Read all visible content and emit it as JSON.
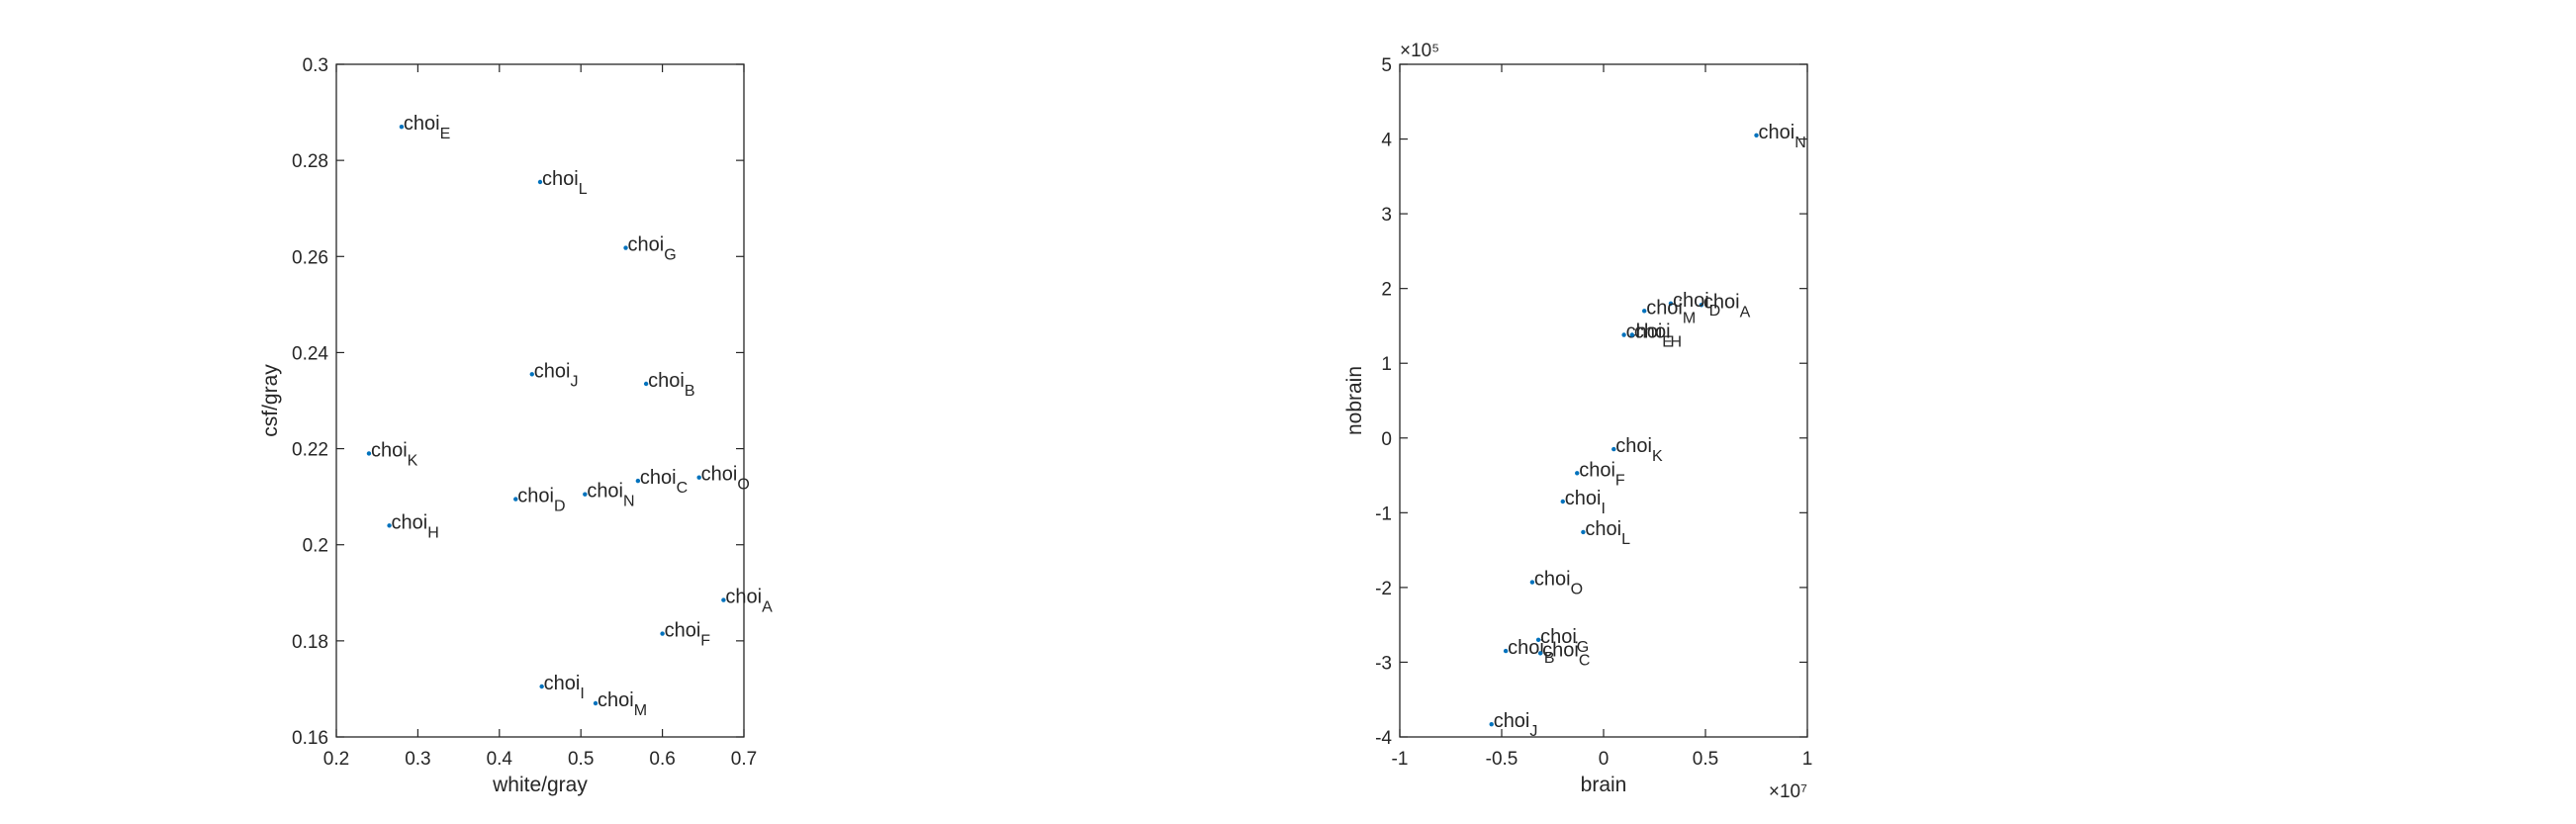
{
  "chart_data": [
    {
      "type": "scatter",
      "xlabel": "white/gray",
      "ylabel": "csf/gray",
      "xlim": [
        0.2,
        0.7
      ],
      "ylim": [
        0.16,
        0.3
      ],
      "xticks": [
        "0.2",
        "0.3",
        "0.4",
        "0.5",
        "0.6",
        "0.7"
      ],
      "yticks": [
        "0.16",
        "0.18",
        "0.2",
        "0.22",
        "0.24",
        "0.26",
        "0.28",
        "0.3"
      ],
      "exponent_x": "",
      "exponent_y": "",
      "grid": false,
      "marker_color": "#0072bd",
      "points": [
        {
          "label": "choi",
          "sub": "E",
          "x": 0.28,
          "y": 0.287
        },
        {
          "label": "choi",
          "sub": "L",
          "x": 0.45,
          "y": 0.2755
        },
        {
          "label": "choi",
          "sub": "G",
          "x": 0.555,
          "y": 0.2618
        },
        {
          "label": "choi",
          "sub": "J",
          "x": 0.44,
          "y": 0.2355
        },
        {
          "label": "choi",
          "sub": "B",
          "x": 0.58,
          "y": 0.2335
        },
        {
          "label": "choi",
          "sub": "K",
          "x": 0.24,
          "y": 0.219
        },
        {
          "label": "choi",
          "sub": "O",
          "x": 0.645,
          "y": 0.214
        },
        {
          "label": "choi",
          "sub": "C",
          "x": 0.57,
          "y": 0.2133
        },
        {
          "label": "choi",
          "sub": "D",
          "x": 0.42,
          "y": 0.2095
        },
        {
          "label": "choi",
          "sub": "N",
          "x": 0.505,
          "y": 0.2105
        },
        {
          "label": "choi",
          "sub": "H",
          "x": 0.265,
          "y": 0.204
        },
        {
          "label": "choi",
          "sub": "A",
          "x": 0.675,
          "y": 0.1885
        },
        {
          "label": "choi",
          "sub": "F",
          "x": 0.6,
          "y": 0.1815
        },
        {
          "label": "choi",
          "sub": "I",
          "x": 0.452,
          "y": 0.1705
        },
        {
          "label": "choi",
          "sub": "M",
          "x": 0.518,
          "y": 0.167
        }
      ]
    },
    {
      "type": "scatter",
      "xlabel": "brain",
      "ylabel": "nobrain",
      "xlim": [
        -1,
        1
      ],
      "ylim": [
        -4,
        5
      ],
      "xticks": [
        "-1",
        "-0.5",
        "0",
        "0.5",
        "1"
      ],
      "yticks": [
        "-4",
        "-3",
        "-2",
        "-1",
        "0",
        "1",
        "2",
        "3",
        "4",
        "5"
      ],
      "exponent_x": "×10⁷",
      "exponent_y": "×10⁵",
      "grid": false,
      "marker_color": "#0072bd",
      "points": [
        {
          "label": "choi",
          "sub": "N",
          "x": 0.75,
          "y": 4.05
        },
        {
          "label": "choi",
          "sub": "A",
          "x": 0.48,
          "y": 1.78
        },
        {
          "label": "choi",
          "sub": "D",
          "x": 0.33,
          "y": 1.8
        },
        {
          "label": "choi",
          "sub": "M",
          "x": 0.2,
          "y": 1.7
        },
        {
          "label": "choi",
          "sub": "E",
          "x": 0.1,
          "y": 1.38
        },
        {
          "label": "choi",
          "sub": "H",
          "x": 0.14,
          "y": 1.38
        },
        {
          "label": "choi",
          "sub": "K",
          "x": 0.05,
          "y": -0.15
        },
        {
          "label": "choi",
          "sub": "F",
          "x": -0.13,
          "y": -0.47
        },
        {
          "label": "choi",
          "sub": "I",
          "x": -0.2,
          "y": -0.85
        },
        {
          "label": "choi",
          "sub": "L",
          "x": -0.1,
          "y": -1.26
        },
        {
          "label": "choi",
          "sub": "O",
          "x": -0.35,
          "y": -1.93
        },
        {
          "label": "choi",
          "sub": "G",
          "x": -0.32,
          "y": -2.7
        },
        {
          "label": "choi",
          "sub": "B",
          "x": -0.48,
          "y": -2.85
        },
        {
          "label": "choi",
          "sub": "C",
          "x": -0.31,
          "y": -2.88
        },
        {
          "label": "choi",
          "sub": "J",
          "x": -0.55,
          "y": -3.83
        }
      ]
    }
  ]
}
